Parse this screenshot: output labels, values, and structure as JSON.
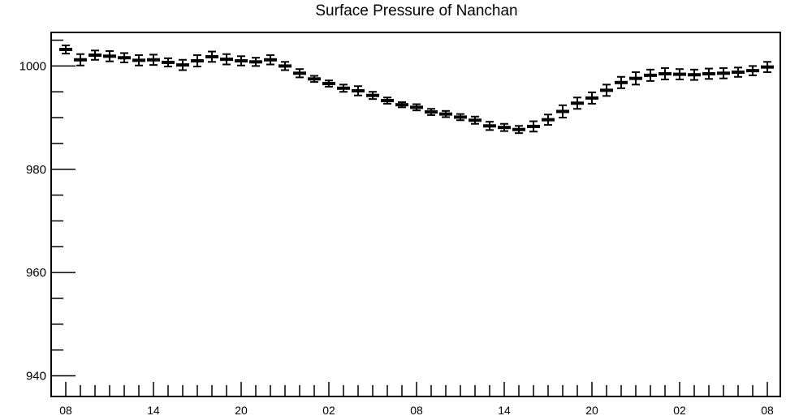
{
  "chart_data": {
    "type": "scatter",
    "title": "Surface Pressure of Nanchan",
    "xlabel": "",
    "ylabel": "",
    "ylim": [
      936,
      1006.5
    ],
    "y_ticks": [
      940,
      960,
      980,
      1000
    ],
    "x_tick_labels": [
      "08",
      "14",
      "20",
      "02",
      "08",
      "14",
      "20",
      "02",
      "08"
    ],
    "x_tick_label_indices": [
      0,
      6,
      12,
      18,
      24,
      30,
      36,
      42,
      48
    ],
    "x_interval_hours": 1,
    "grid": false,
    "legend": "none",
    "marker": "horizontal bar with error bars",
    "color": "#000000",
    "series": [
      {
        "values": [
          1003.2,
          1001.2,
          1002.1,
          1001.9,
          1001.6,
          1001.1,
          1001.2,
          1000.7,
          1000.2,
          1001.0,
          1001.8,
          1001.3,
          1001.0,
          1000.8,
          1001.2,
          1000.0,
          998.6,
          997.5,
          996.6,
          995.7,
          995.2,
          994.3,
          993.3,
          992.5,
          992.0,
          991.1,
          990.7,
          990.1,
          989.5,
          988.4,
          988.1,
          987.7,
          988.3,
          989.6,
          991.2,
          992.8,
          993.8,
          995.3,
          996.8,
          997.6,
          998.2,
          998.5,
          998.4,
          998.3,
          998.5,
          998.6,
          998.8,
          999.1,
          999.8
        ],
        "errors": [
          0.8,
          1.1,
          0.9,
          1.0,
          0.9,
          1.0,
          1.0,
          0.8,
          1.0,
          1.1,
          1.0,
          1.0,
          0.9,
          0.8,
          0.9,
          0.8,
          0.8,
          0.6,
          0.6,
          0.7,
          0.9,
          0.7,
          0.6,
          0.5,
          0.6,
          0.6,
          0.6,
          0.6,
          0.7,
          0.8,
          0.7,
          0.7,
          1.0,
          1.0,
          1.2,
          1.1,
          1.1,
          1.1,
          1.1,
          1.2,
          1.1,
          1.1,
          1.0,
          1.0,
          1.0,
          1.0,
          0.9,
          0.9,
          1.0
        ]
      }
    ]
  }
}
